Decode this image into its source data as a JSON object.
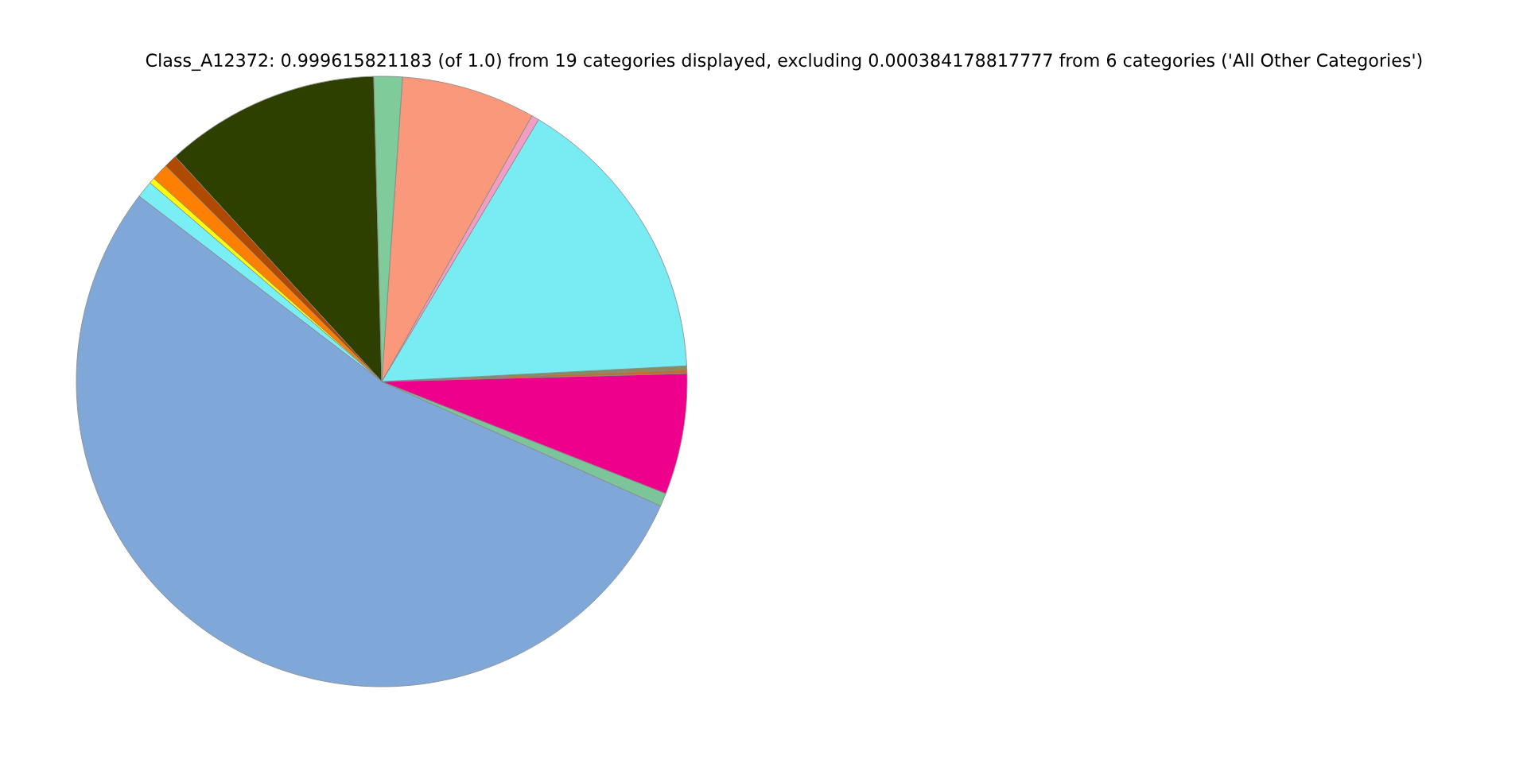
{
  "chart_data": {
    "type": "pie",
    "title": "Class_A12372: 0.999615821183 (of 1.0) from 19 categories displayed, excluding 0.000384178817777 from 6 categories ('All Other Categories')",
    "categories": [
      null,
      null,
      null,
      null,
      null,
      null,
      null,
      null,
      null,
      null,
      null,
      null,
      null,
      null
    ],
    "values": [
      11.4,
      0.7,
      0.9,
      0.3,
      0.9,
      53.7,
      0.7,
      6.4,
      0.2,
      0.2,
      15.6,
      0.4,
      7.1,
      1.5
    ],
    "colors": [
      "#2d4000",
      "#b04a00",
      "#ff7f00",
      "#ffff00",
      "#7aeef5",
      "#7fa8d8",
      "#7cc59a",
      "#ee008c",
      "#c0702a",
      "#8a8a5a",
      "#79ecf3",
      "#f29ec4",
      "#f9987a",
      "#7fcb9a"
    ]
  }
}
